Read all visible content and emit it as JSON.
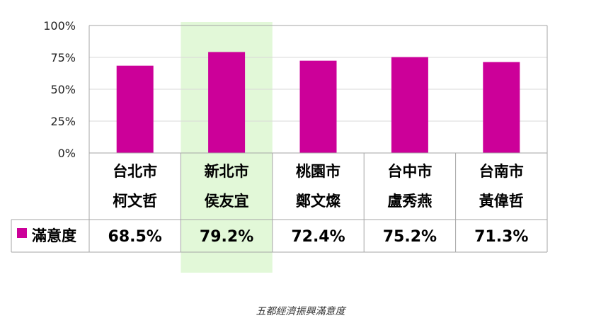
{
  "chart_data": {
    "type": "bar",
    "categories": [
      "台北市\n柯文哲",
      "新北市\n侯友宜",
      "桃園市\n鄭文燦",
      "台中市\n盧秀燕",
      "台南市\n黃偉哲"
    ],
    "category_lines": [
      [
        "台北市",
        "柯文哲"
      ],
      [
        "新北市",
        "侯友宜"
      ],
      [
        "桃園市",
        "鄭文燦"
      ],
      [
        "台中市",
        "盧秀燕"
      ],
      [
        "台南市",
        "黃偉哲"
      ]
    ],
    "series": [
      {
        "name": "滿意度",
        "values": [
          68.5,
          79.2,
          72.4,
          75.2,
          71.3
        ],
        "value_labels": [
          "68.5%",
          "79.2%",
          "72.4%",
          "75.2%",
          "71.3%"
        ]
      }
    ],
    "ylim": [
      0,
      100
    ],
    "y_ticks": [
      0,
      25,
      50,
      75,
      100
    ],
    "y_tick_labels": [
      "0%",
      "25%",
      "50%",
      "75%",
      "100%"
    ],
    "grid": true,
    "data_table": true,
    "highlight_category_index": 1,
    "colors": {
      "bar": "#CC0099",
      "highlight": "#E2F8D8",
      "grid": "#D9D9D9",
      "border": "#A6A6A6"
    }
  },
  "caption": "五都經濟振興滿意度"
}
